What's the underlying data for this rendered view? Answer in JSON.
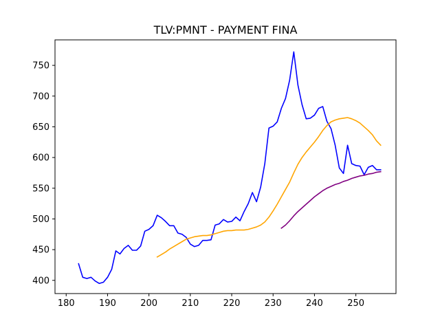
{
  "chart_data": {
    "type": "line",
    "title": "TLV:PMNT - PAYMENT FINA",
    "xlabel": "",
    "ylabel": "",
    "xlim": [
      177.3,
      259.7
    ],
    "ylim": [
      378.5,
      791.5
    ],
    "xticks": [
      180,
      190,
      200,
      210,
      220,
      230,
      240,
      250
    ],
    "yticks": [
      400,
      450,
      500,
      550,
      600,
      650,
      700,
      750
    ],
    "grid": false,
    "legend": "none",
    "series": [
      {
        "color": "#0000ff",
        "x": [
          183,
          184,
          185,
          186,
          187,
          188,
          189,
          190,
          191,
          192,
          193,
          194,
          195,
          196,
          197,
          198,
          199,
          200,
          201,
          202,
          203,
          204,
          205,
          206,
          207,
          208,
          209,
          210,
          211,
          212,
          213,
          214,
          215,
          216,
          217,
          218,
          219,
          220,
          221,
          222,
          223,
          224,
          225,
          226,
          227,
          228,
          229,
          230,
          231,
          232,
          233,
          234,
          235,
          236,
          237,
          238,
          239,
          240,
          241,
          242,
          243,
          244,
          245,
          246,
          247,
          248,
          249,
          250,
          251,
          252,
          253,
          254,
          255,
          256
        ],
        "values": [
          427,
          405,
          403,
          405,
          399,
          395,
          397,
          405,
          418,
          448,
          443,
          452,
          457,
          449,
          449,
          456,
          480,
          483,
          489,
          506,
          502,
          496,
          489,
          489,
          477,
          475,
          470,
          459,
          455,
          457,
          465,
          465,
          466,
          490,
          492,
          499,
          495,
          496,
          503,
          497,
          512,
          525,
          543,
          528,
          552,
          590,
          648,
          651,
          658,
          680,
          696,
          726,
          772,
          718,
          686,
          663,
          664,
          669,
          680,
          683,
          659,
          647,
          620,
          583,
          574,
          620,
          590,
          587,
          586,
          572,
          584,
          587,
          580,
          580
        ]
      },
      {
        "color": "#ffa500",
        "x": [
          202,
          203,
          204,
          205,
          206,
          207,
          208,
          209,
          210,
          211,
          212,
          213,
          214,
          215,
          216,
          217,
          218,
          219,
          220,
          221,
          222,
          223,
          224,
          225,
          226,
          227,
          228,
          229,
          230,
          231,
          232,
          233,
          234,
          235,
          236,
          237,
          238,
          239,
          240,
          241,
          242,
          243,
          244,
          245,
          246,
          247,
          248,
          249,
          250,
          251,
          252,
          253,
          254,
          255,
          256
        ],
        "values": [
          438,
          442,
          446,
          451,
          455,
          459,
          463,
          467,
          469,
          471,
          472,
          473,
          473,
          474,
          476,
          478,
          480,
          481,
          481,
          482,
          482,
          482,
          483,
          485,
          487,
          490,
          495,
          503,
          513,
          524,
          536,
          548,
          560,
          575,
          589,
          600,
          609,
          617,
          625,
          634,
          644,
          652,
          658,
          661,
          663,
          664,
          665,
          663,
          660,
          656,
          650,
          644,
          637,
          627,
          620
        ]
      },
      {
        "color": "#800080",
        "x": [
          232,
          233,
          234,
          235,
          236,
          237,
          238,
          239,
          240,
          241,
          242,
          243,
          244,
          245,
          246,
          247,
          248,
          249,
          250,
          251,
          252,
          253,
          254,
          255,
          256
        ],
        "values": [
          485,
          490,
          497,
          505,
          512,
          518,
          524,
          530,
          536,
          541,
          546,
          550,
          553,
          556,
          558,
          561,
          563,
          566,
          568,
          570,
          571,
          573,
          574,
          576,
          577
        ]
      }
    ]
  }
}
